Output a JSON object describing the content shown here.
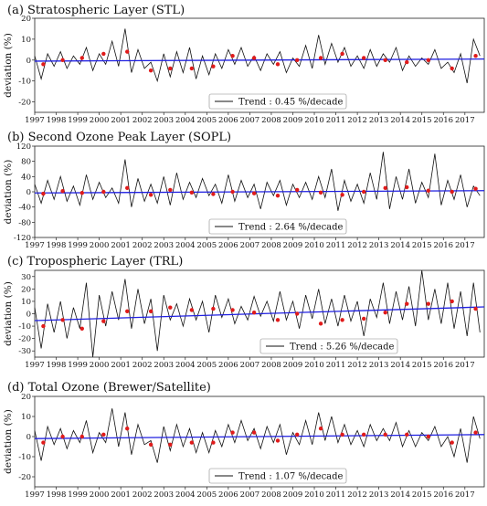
{
  "chart_data": [
    {
      "type": "line",
      "title": "(a) Stratospheric Layer (STL)",
      "ylabel": "deviation (%)",
      "ylim": [
        -25,
        20
      ],
      "yticks": [
        -20,
        -10,
        0,
        10,
        20
      ],
      "xlim": [
        1997.0,
        2017.9
      ],
      "xticks": [
        "1997",
        "1998",
        "1999",
        "2000",
        "2001",
        "2002",
        "2003",
        "2004",
        "2005",
        "2006",
        "2007",
        "2008",
        "2009",
        "2010",
        "2011",
        "2012",
        "2013",
        "2014",
        "2015",
        "2016",
        "2017"
      ],
      "legend": {
        "entry": "Trend : 0.45 %/decade",
        "placement": "bottom-center"
      },
      "trend": {
        "x": [
          1997.0,
          2017.9
        ],
        "y": [
          -0.5,
          0.5
        ],
        "color": "#1f1fe0"
      },
      "series": [
        {
          "x": [
            1997.0,
            1997.3,
            1997.6,
            1997.9,
            1998.2,
            1998.5,
            1998.8,
            1999.1,
            1999.4,
            1999.7,
            2000.0,
            2000.3,
            2000.6,
            2000.9,
            2001.2,
            2001.5,
            2001.8,
            2002.1,
            2002.4,
            2002.7,
            2003.0,
            2003.3,
            2003.6,
            2003.9,
            2004.2,
            2004.5,
            2004.8,
            2005.1,
            2005.4,
            2005.7,
            2006.0,
            2006.3,
            2006.6,
            2006.9,
            2007.2,
            2007.5,
            2007.8,
            2008.1,
            2008.4,
            2008.7,
            2009.0,
            2009.3,
            2009.6,
            2009.9,
            2010.2,
            2010.5,
            2010.8,
            2011.1,
            2011.4,
            2011.7,
            2012.0,
            2012.3,
            2012.6,
            2012.9,
            2013.2,
            2013.5,
            2013.8,
            2014.1,
            2014.4,
            2014.7,
            2015.0,
            2015.3,
            2015.6,
            2015.9,
            2016.2,
            2016.5,
            2016.8,
            2017.1,
            2017.4,
            2017.7
          ],
          "y": [
            2,
            -9,
            3,
            -3,
            4,
            -4,
            2,
            -2,
            6,
            -5,
            3,
            -2,
            9,
            -3,
            15,
            -6,
            5,
            -4,
            -1,
            -10,
            3,
            -8,
            4,
            -6,
            6,
            -9,
            2,
            -7,
            3,
            -4,
            5,
            -2,
            6,
            -3,
            2,
            -5,
            3,
            -2,
            4,
            -6,
            1,
            -3,
            7,
            -4,
            12,
            -2,
            8,
            -1,
            6,
            -3,
            2,
            -4,
            5,
            -3,
            3,
            -1,
            6,
            -5,
            2,
            -3,
            1,
            -2,
            5,
            -4,
            -1,
            -6,
            3,
            -11,
            10,
            2
          ],
          "color": "#111111"
        },
        {
          "name": "",
          "x": [
            1997.4,
            1998.3,
            1999.2,
            2000.2,
            2001.3,
            2002.4,
            2003.3,
            2004.3,
            2005.3,
            2006.2,
            2007.2,
            2008.3,
            2009.2,
            2010.3,
            2011.3,
            2012.3,
            2013.3,
            2014.3,
            2015.3,
            2016.4,
            2017.5
          ],
          "y": [
            -2,
            0,
            1,
            3,
            4,
            -5,
            -4,
            -4,
            -3,
            2,
            1,
            -2,
            0,
            1,
            3,
            1,
            0,
            -1,
            0,
            -4,
            2
          ],
          "color": "#e01b1b",
          "style": "points"
        }
      ]
    },
    {
      "type": "line",
      "title": "(b) Second Ozone Peak Layer (SOPL)",
      "ylabel": "deviation (%)",
      "ylim": [
        -120,
        120
      ],
      "yticks": [
        -120,
        -80,
        -40,
        0,
        40,
        80,
        120
      ],
      "xlim": [
        1997.0,
        2017.9
      ],
      "xticks": [
        "1997",
        "1998",
        "1999",
        "2000",
        "2001",
        "2002",
        "2003",
        "2004",
        "2005",
        "2006",
        "2007",
        "2008",
        "2009",
        "2010",
        "2011",
        "2012",
        "2013",
        "2014",
        "2015",
        "2016",
        "2017"
      ],
      "legend": {
        "entry": "Trend : 2.64 %/decade",
        "placement": "bottom-center"
      },
      "trend": {
        "x": [
          1997.0,
          2017.9
        ],
        "y": [
          -3,
          3
        ],
        "color": "#1f1fe0"
      },
      "series": [
        {
          "x": [
            1997.0,
            1997.3,
            1997.6,
            1997.9,
            1998.2,
            1998.5,
            1998.8,
            1999.1,
            1999.4,
            1999.7,
            2000.0,
            2000.3,
            2000.6,
            2000.9,
            2001.2,
            2001.5,
            2001.8,
            2002.1,
            2002.4,
            2002.7,
            2003.0,
            2003.3,
            2003.6,
            2003.9,
            2004.2,
            2004.5,
            2004.8,
            2005.1,
            2005.4,
            2005.7,
            2006.0,
            2006.3,
            2006.6,
            2006.9,
            2007.2,
            2007.5,
            2007.8,
            2008.1,
            2008.4,
            2008.7,
            2009.0,
            2009.3,
            2009.6,
            2009.9,
            2010.2,
            2010.5,
            2010.8,
            2011.1,
            2011.4,
            2011.7,
            2012.0,
            2012.3,
            2012.6,
            2012.9,
            2013.2,
            2013.5,
            2013.8,
            2014.1,
            2014.4,
            2014.7,
            2015.0,
            2015.3,
            2015.6,
            2015.9,
            2016.2,
            2016.5,
            2016.8,
            2017.1,
            2017.4,
            2017.7
          ],
          "y": [
            20,
            -30,
            30,
            -20,
            40,
            -25,
            15,
            -35,
            45,
            -20,
            25,
            -15,
            10,
            -30,
            85,
            -40,
            35,
            -25,
            20,
            -30,
            40,
            -35,
            50,
            -20,
            25,
            -15,
            35,
            -10,
            20,
            -30,
            45,
            -25,
            30,
            -15,
            20,
            -45,
            25,
            -10,
            30,
            -35,
            20,
            -15,
            25,
            -20,
            40,
            -15,
            60,
            -50,
            30,
            -25,
            20,
            -30,
            50,
            -20,
            105,
            -45,
            40,
            -20,
            60,
            -30,
            25,
            -15,
            100,
            -35,
            30,
            -20,
            45,
            -40,
            15,
            -10
          ],
          "color": "#111111"
        },
        {
          "name": "",
          "x": [
            1997.4,
            1998.3,
            1999.2,
            2000.2,
            2001.3,
            2002.4,
            2003.3,
            2004.3,
            2005.3,
            2006.2,
            2007.2,
            2008.3,
            2009.2,
            2010.3,
            2011.3,
            2012.3,
            2013.3,
            2014.3,
            2015.3,
            2016.4,
            2017.5
          ],
          "y": [
            -5,
            2,
            -3,
            0,
            10,
            -8,
            5,
            -2,
            -6,
            0,
            -4,
            -10,
            5,
            -2,
            -8,
            0,
            10,
            12,
            3,
            0,
            8
          ],
          "color": "#e01b1b",
          "style": "points"
        }
      ]
    },
    {
      "type": "line",
      "title": "(c) Tropospheric Layer (TRL)",
      "ylabel": "deviation (%)",
      "ylim": [
        -35,
        35
      ],
      "yticks": [
        -30,
        -20,
        -10,
        0,
        10,
        20,
        30
      ],
      "xlim": [
        1997.0,
        2017.9
      ],
      "xticks": [
        "1997",
        "1998",
        "1999",
        "2000",
        "2001",
        "2002",
        "2003",
        "2004",
        "2005",
        "2006",
        "2007",
        "2008",
        "2009",
        "2010",
        "2011",
        "2012",
        "2013",
        "2014",
        "2015",
        "2016",
        "2017"
      ],
      "legend": {
        "entry": "Trend : 5.26 %/decade",
        "placement": "bottom-right"
      },
      "trend": {
        "x": [
          1997.0,
          2017.9
        ],
        "y": [
          -5.5,
          5.5
        ],
        "color": "#1f1fe0"
      },
      "series": [
        {
          "x": [
            1997.0,
            1997.3,
            1997.6,
            1997.9,
            1998.2,
            1998.5,
            1998.8,
            1999.1,
            1999.4,
            1999.7,
            2000.0,
            2000.3,
            2000.6,
            2000.9,
            2001.2,
            2001.5,
            2001.8,
            2002.1,
            2002.4,
            2002.7,
            2003.0,
            2003.3,
            2003.6,
            2003.9,
            2004.2,
            2004.5,
            2004.8,
            2005.1,
            2005.4,
            2005.7,
            2006.0,
            2006.3,
            2006.6,
            2006.9,
            2007.2,
            2007.5,
            2007.8,
            2008.1,
            2008.4,
            2008.7,
            2009.0,
            2009.3,
            2009.6,
            2009.9,
            2010.2,
            2010.5,
            2010.8,
            2011.1,
            2011.4,
            2011.7,
            2012.0,
            2012.3,
            2012.6,
            2012.9,
            2013.2,
            2013.5,
            2013.8,
            2014.1,
            2014.4,
            2014.7,
            2015.0,
            2015.3,
            2015.6,
            2015.9,
            2016.2,
            2016.5,
            2016.8,
            2017.1,
            2017.4,
            2017.7
          ],
          "y": [
            5,
            -28,
            8,
            -15,
            10,
            -20,
            5,
            -12,
            25,
            -35,
            15,
            -10,
            18,
            -5,
            28,
            -12,
            20,
            -8,
            12,
            -30,
            15,
            -5,
            8,
            -10,
            12,
            -5,
            10,
            -15,
            15,
            -3,
            12,
            -8,
            6,
            -5,
            14,
            -2,
            10,
            -6,
            18,
            -5,
            10,
            -12,
            15,
            -4,
            20,
            -8,
            12,
            -10,
            15,
            -6,
            10,
            -18,
            12,
            -3,
            25,
            -8,
            18,
            -5,
            22,
            -10,
            35,
            -5,
            20,
            -8,
            25,
            -12,
            18,
            -18,
            25,
            -15
          ],
          "color": "#111111"
        },
        {
          "name": "",
          "x": [
            1997.4,
            1998.3,
            1999.2,
            2000.2,
            2001.3,
            2002.4,
            2003.3,
            2004.3,
            2005.3,
            2006.2,
            2007.2,
            2008.3,
            2009.2,
            2010.3,
            2011.3,
            2012.3,
            2013.3,
            2014.3,
            2015.3,
            2016.4,
            2017.5
          ],
          "y": [
            -10,
            -5,
            -12,
            -6,
            2,
            2,
            5,
            3,
            4,
            3,
            1,
            -5,
            0,
            -8,
            -5,
            -4,
            1,
            8,
            8,
            10,
            4
          ],
          "color": "#e01b1b",
          "style": "points"
        }
      ]
    },
    {
      "type": "line",
      "title": "(d) Total Ozone  (Brewer/Satellite)",
      "ylabel": "deviation (%)",
      "ylim": [
        -25,
        20
      ],
      "yticks": [
        -20,
        -10,
        0,
        10,
        20
      ],
      "xlim": [
        1997.0,
        2017.9
      ],
      "xticks": [
        "1997",
        "1998",
        "1999",
        "2000",
        "2001",
        "2002",
        "2003",
        "2004",
        "2005",
        "2006",
        "2007",
        "2008",
        "2009",
        "2010",
        "2011",
        "2012",
        "2013",
        "2014",
        "2015",
        "2016",
        "2017"
      ],
      "legend": {
        "entry": "Trend : 1.07 %/decade",
        "placement": "bottom-center"
      },
      "trend": {
        "x": [
          1997.0,
          2017.9
        ],
        "y": [
          -1.0,
          1.0
        ],
        "color": "#1f1fe0"
      },
      "series": [
        {
          "x": [
            1997.0,
            1997.3,
            1997.6,
            1997.9,
            1998.2,
            1998.5,
            1998.8,
            1999.1,
            1999.4,
            1999.7,
            2000.0,
            2000.3,
            2000.6,
            2000.9,
            2001.2,
            2001.5,
            2001.8,
            2002.1,
            2002.4,
            2002.7,
            2003.0,
            2003.3,
            2003.6,
            2003.9,
            2004.2,
            2004.5,
            2004.8,
            2005.1,
            2005.4,
            2005.7,
            2006.0,
            2006.3,
            2006.6,
            2006.9,
            2007.2,
            2007.5,
            2007.8,
            2008.1,
            2008.4,
            2008.7,
            2009.0,
            2009.3,
            2009.6,
            2009.9,
            2010.2,
            2010.5,
            2010.8,
            2011.1,
            2011.4,
            2011.7,
            2012.0,
            2012.3,
            2012.6,
            2012.9,
            2013.2,
            2013.5,
            2013.8,
            2014.1,
            2014.4,
            2014.7,
            2015.0,
            2015.3,
            2015.6,
            2015.9,
            2016.2,
            2016.5,
            2016.8,
            2017.1,
            2017.4,
            2017.7
          ],
          "y": [
            3,
            -12,
            5,
            -4,
            4,
            -6,
            3,
            -3,
            8,
            -8,
            2,
            -3,
            14,
            -5,
            12,
            -9,
            6,
            -4,
            -2,
            -13,
            5,
            -7,
            6,
            -5,
            4,
            -8,
            2,
            -8,
            3,
            -5,
            6,
            -3,
            8,
            -2,
            4,
            -6,
            5,
            -3,
            6,
            -9,
            2,
            -4,
            8,
            -4,
            12,
            -2,
            10,
            -3,
            6,
            -4,
            3,
            -5,
            6,
            -2,
            4,
            -2,
            7,
            -5,
            3,
            -5,
            2,
            -2,
            5,
            -5,
            0,
            -10,
            4,
            -13,
            10,
            -1
          ],
          "color": "#111111"
        },
        {
          "name": "",
          "x": [
            1997.4,
            1998.3,
            1999.2,
            2000.2,
            2001.3,
            2002.4,
            2003.3,
            2004.3,
            2005.3,
            2006.2,
            2007.2,
            2008.3,
            2009.2,
            2010.3,
            2011.3,
            2012.3,
            2013.3,
            2014.3,
            2015.3,
            2016.4,
            2017.5
          ],
          "y": [
            -3,
            0,
            0,
            1,
            4,
            -4,
            -4,
            -3,
            -3,
            2,
            2,
            -2,
            1,
            4,
            1,
            1,
            1,
            1,
            0,
            -3,
            2
          ],
          "color": "#e01b1b",
          "style": "points"
        }
      ]
    }
  ]
}
